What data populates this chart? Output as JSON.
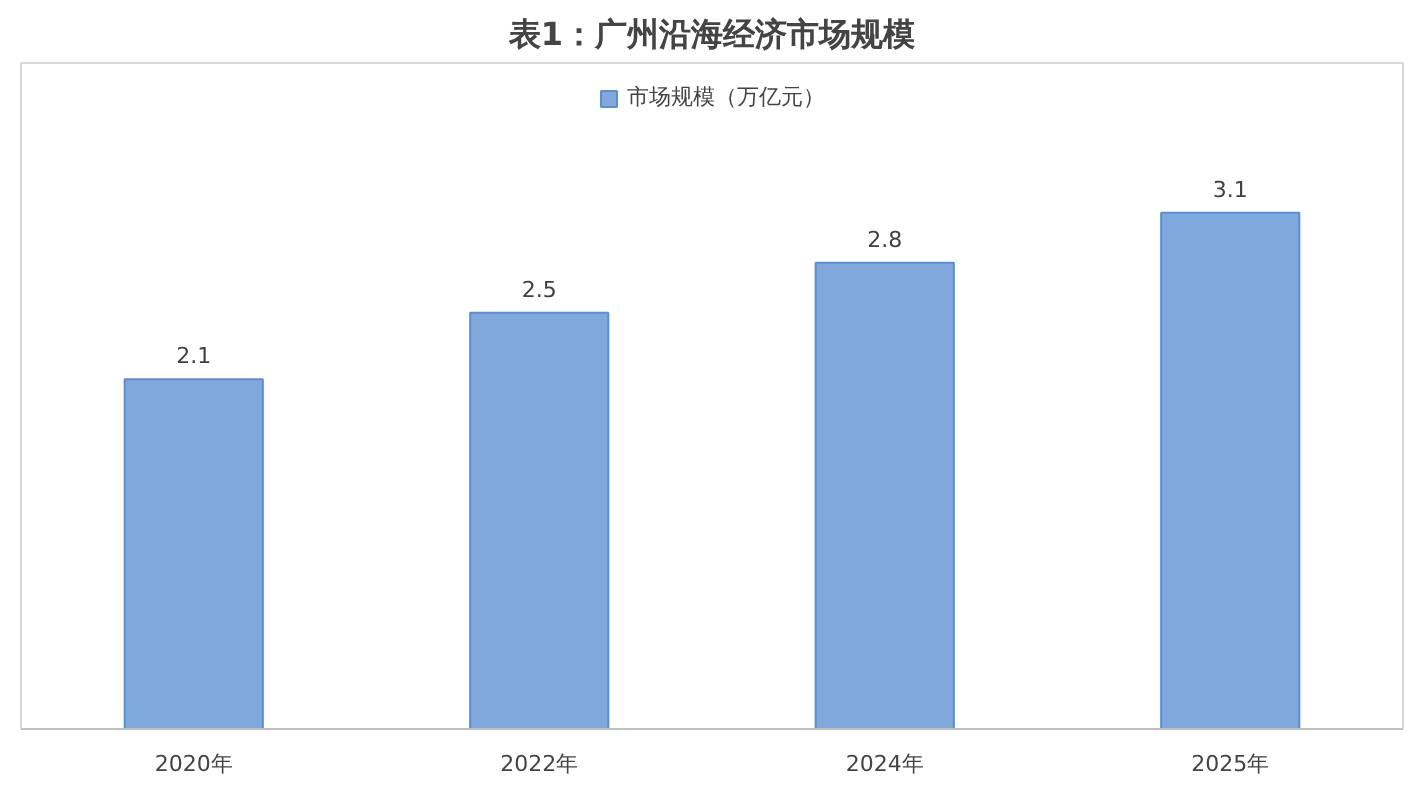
{
  "chart_data": {
    "type": "bar",
    "title": "表1：广州沿海经济市场规模",
    "categories": [
      "2020年",
      "2022年",
      "2024年",
      "2025年"
    ],
    "series": [
      {
        "name": "市场规模（万亿元）",
        "color": "#7fa9dc",
        "values": [
          2.1,
          2.5,
          2.8,
          3.1
        ]
      }
    ],
    "ylim": [
      0,
      4
    ],
    "data_labels": true,
    "legend": "top",
    "grid": false,
    "tick_labels": "x"
  }
}
